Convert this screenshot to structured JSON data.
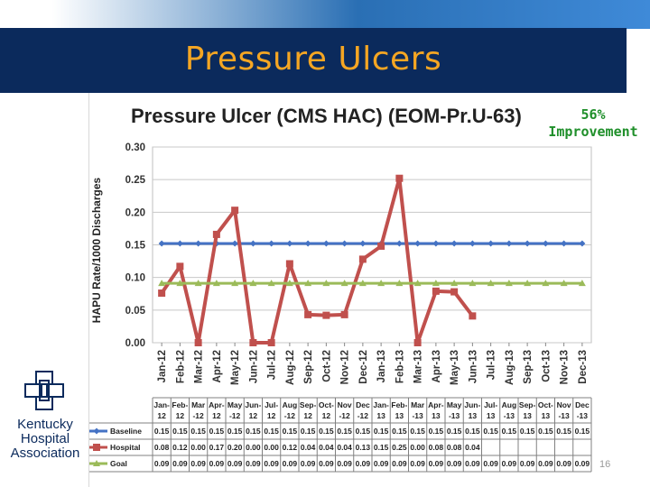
{
  "slide": {
    "title": "Pressure Ulcers",
    "improvement_line1": "56%",
    "improvement_line2": "Improvement",
    "slide_number": "16",
    "logo_lines": [
      "Kentucky",
      "Hospital",
      "Association"
    ]
  },
  "colors": {
    "title_bar": "#0b2a5c",
    "title_text": "#f5a623",
    "baseline": "#4472c4",
    "hospital": "#c0504d",
    "goal": "#9bbb59",
    "improvement": "#1f8f2a"
  },
  "chart_data": {
    "type": "line",
    "title": "Pressure Ulcer (CMS HAC) (EOM-Pr.U-63)",
    "xlabel": "",
    "ylabel": "HAPU Rate/1000 Discharges",
    "ylim": [
      0,
      0.3
    ],
    "yticks": [
      "0.00",
      "0.05",
      "0.10",
      "0.15",
      "0.20",
      "0.25",
      "0.30"
    ],
    "categories": [
      "Jan-12",
      "Feb-12",
      "Mar-12",
      "Apr-12",
      "May-12",
      "Jun-12",
      "Jul-12",
      "Aug-12",
      "Sep-12",
      "Oct-12",
      "Nov-12",
      "Dec-12",
      "Jan-13",
      "Feb-13",
      "Mar-13",
      "Apr-13",
      "May-13",
      "Jun-13",
      "Jul-13",
      "Aug-13",
      "Sep-13",
      "Oct-13",
      "Nov-13",
      "Dec-13"
    ],
    "table_header": [
      [
        "Jan-",
        "12"
      ],
      [
        "Feb-",
        "12"
      ],
      [
        "Mar",
        "-12"
      ],
      [
        "Apr-",
        "12"
      ],
      [
        "May",
        "-12"
      ],
      [
        "Jun-",
        "12"
      ],
      [
        "Jul-",
        "12"
      ],
      [
        "Aug",
        "-12"
      ],
      [
        "Sep-",
        "12"
      ],
      [
        "Oct-",
        "12"
      ],
      [
        "Nov",
        "-12"
      ],
      [
        "Dec",
        "-12"
      ],
      [
        "Jan-",
        "13"
      ],
      [
        "Feb-",
        "13"
      ],
      [
        "Mar",
        "-13"
      ],
      [
        "Apr-",
        "13"
      ],
      [
        "May",
        "-13"
      ],
      [
        "Jun-",
        "13"
      ],
      [
        "Jul-",
        "13"
      ],
      [
        "Aug",
        "-13"
      ],
      [
        "Sep-",
        "13"
      ],
      [
        "Oct-",
        "13"
      ],
      [
        "Nov",
        "-13"
      ],
      [
        "Dec",
        "-13"
      ]
    ],
    "series": [
      {
        "name": "Baseline",
        "values": [
          0.152,
          0.152,
          0.152,
          0.152,
          0.152,
          0.152,
          0.152,
          0.152,
          0.152,
          0.152,
          0.152,
          0.152,
          0.152,
          0.152,
          0.152,
          0.152,
          0.152,
          0.152,
          0.152,
          0.152,
          0.152,
          0.152,
          0.152,
          0.152
        ],
        "table": [
          "0.15",
          "0.15",
          "0.15",
          "0.15",
          "0.15",
          "0.15",
          "0.15",
          "0.15",
          "0.15",
          "0.15",
          "0.15",
          "0.15",
          "0.15",
          "0.15",
          "0.15",
          "0.15",
          "0.15",
          "0.15",
          "0.15",
          "0.15",
          "0.15",
          "0.15",
          "0.15",
          "0.15"
        ]
      },
      {
        "name": "Hospital",
        "values": [
          0.076,
          0.117,
          0.0,
          0.166,
          0.203,
          0.0,
          0.0,
          0.121,
          0.043,
          0.042,
          0.043,
          0.128,
          0.148,
          0.252,
          0.0,
          0.079,
          0.078,
          0.041,
          null,
          null,
          null,
          null,
          null,
          null
        ],
        "table": [
          "0.08",
          "0.12",
          "0.00",
          "0.17",
          "0.20",
          "0.00",
          "0.00",
          "0.12",
          "0.04",
          "0.04",
          "0.04",
          "0.13",
          "0.15",
          "0.25",
          "0.00",
          "0.08",
          "0.08",
          "0.04",
          "",
          "",
          "",
          "",
          "",
          ""
        ]
      },
      {
        "name": "Goal",
        "values": [
          0.091,
          0.091,
          0.091,
          0.091,
          0.091,
          0.091,
          0.091,
          0.091,
          0.091,
          0.091,
          0.091,
          0.091,
          0.091,
          0.091,
          0.091,
          0.091,
          0.091,
          0.091,
          0.091,
          0.091,
          0.091,
          0.091,
          0.091,
          0.091
        ],
        "table": [
          "0.09",
          "0.09",
          "0.09",
          "0.09",
          "0.09",
          "0.09",
          "0.09",
          "0.09",
          "0.09",
          "0.09",
          "0.09",
          "0.09",
          "0.09",
          "0.09",
          "0.09",
          "0.09",
          "0.09",
          "0.09",
          "0.09",
          "0.09",
          "0.09",
          "0.09",
          "0.09",
          "0.09"
        ]
      }
    ],
    "grid": true,
    "legend": "data-table"
  }
}
